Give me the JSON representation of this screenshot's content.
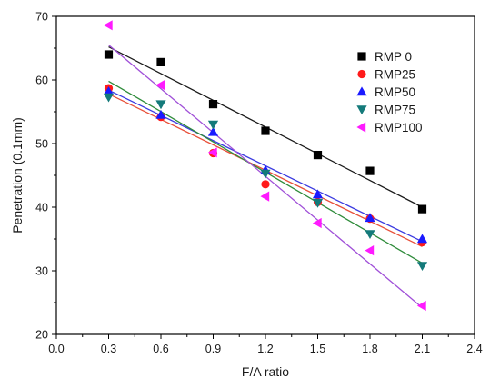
{
  "chart_data": {
    "type": "scatter",
    "xlabel": "F/A ratio",
    "ylabel": "Penetration (0.1mm)",
    "xlim": [
      0.0,
      2.4
    ],
    "ylim": [
      20,
      70
    ],
    "xticks": [
      "0.0",
      "0.3",
      "0.6",
      "0.9",
      "1.2",
      "1.5",
      "1.8",
      "2.1",
      "2.4"
    ],
    "yticks": [
      "20",
      "30",
      "40",
      "50",
      "60",
      "70"
    ],
    "grid": false,
    "legend_position": "top-right",
    "x": [
      0.3,
      0.6,
      0.9,
      1.2,
      1.5,
      1.8,
      2.1
    ],
    "series": [
      {
        "name": "RMP 0",
        "marker": "square",
        "color": "#000000",
        "line_color": "#1a1a1a",
        "values": [
          64.0,
          62.8,
          56.2,
          52.0,
          48.2,
          45.7,
          39.7
        ],
        "trend": [
          65.2,
          40.0
        ]
      },
      {
        "name": "RMP25",
        "marker": "circle",
        "color": "#ff1a1a",
        "line_color": "#e8503a",
        "values": [
          58.7,
          54.2,
          48.5,
          43.6,
          40.8,
          38.2,
          34.5
        ],
        "trend": [
          57.8,
          33.8
        ]
      },
      {
        "name": "RMP50",
        "marker": "triangle-up",
        "color": "#1a1aff",
        "line_color": "#3a3ae0",
        "values": [
          58.2,
          54.5,
          51.8,
          45.8,
          42.0,
          38.3,
          35.0
        ],
        "trend": [
          58.4,
          34.6
        ]
      },
      {
        "name": "RMP75",
        "marker": "triangle-down",
        "color": "#147a7a",
        "line_color": "#2e8b3a",
        "values": [
          57.3,
          56.2,
          53.0,
          45.3,
          40.7,
          35.8,
          30.8
        ],
        "trend": [
          59.8,
          31.2
        ]
      },
      {
        "name": "RMP100",
        "marker": "triangle-left",
        "color": "#ff1aff",
        "line_color": "#a050d8",
        "values": [
          68.6,
          59.2,
          48.6,
          41.7,
          37.5,
          33.2,
          24.5
        ],
        "trend": [
          65.5,
          24.2
        ]
      }
    ]
  }
}
